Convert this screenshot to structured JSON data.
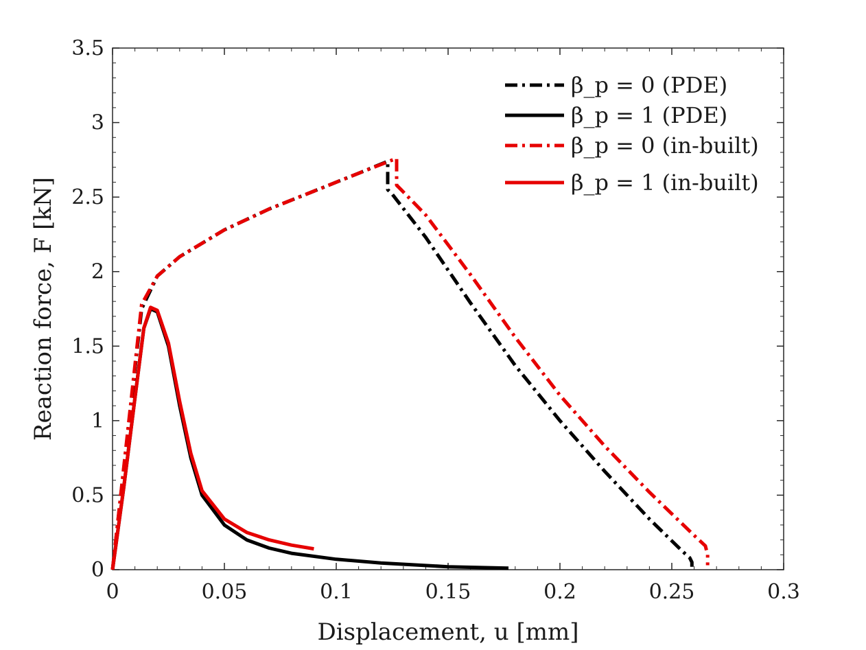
{
  "chart_data": {
    "type": "line",
    "xlabel": "Displacement, u [mm]",
    "ylabel": "Reaction force, F [kN]",
    "xlim": [
      0,
      0.3
    ],
    "ylim": [
      0,
      3.5
    ],
    "xticks": [
      0,
      0.05,
      0.1,
      0.15,
      0.2,
      0.25,
      0.3
    ],
    "yticks": [
      0,
      0.5,
      1,
      1.5,
      2,
      2.5,
      3,
      3.5
    ],
    "xtick_labels": [
      "0",
      "0.05",
      "0.1",
      "0.15",
      "0.2",
      "0.25",
      "0.3"
    ],
    "ytick_labels": [
      "0",
      "0.5",
      "1",
      "1.5",
      "2",
      "2.5",
      "3",
      "3.5"
    ],
    "grid": false,
    "legend_position": "top-right",
    "series": [
      {
        "name": "β_p = 0 (PDE)",
        "color": "#000000",
        "dash": "dashdot",
        "x": [
          0,
          0.013,
          0.02,
          0.03,
          0.05,
          0.07,
          0.09,
          0.11,
          0.123,
          0.123,
          0.125,
          0.14,
          0.16,
          0.18,
          0.2,
          0.22,
          0.24,
          0.255,
          0.258,
          0.259,
          0.259
        ],
        "y": [
          0,
          1.75,
          1.97,
          2.1,
          2.28,
          2.42,
          2.54,
          2.66,
          2.74,
          2.55,
          2.52,
          2.23,
          1.79,
          1.37,
          1.0,
          0.66,
          0.34,
          0.12,
          0.08,
          0.05,
          0.02
        ]
      },
      {
        "name": "β_p = 1 (PDE)",
        "color": "#000000",
        "dash": "solid",
        "x": [
          0,
          0.005,
          0.01,
          0.014,
          0.017,
          0.02,
          0.025,
          0.03,
          0.035,
          0.04,
          0.05,
          0.06,
          0.07,
          0.08,
          0.1,
          0.12,
          0.15,
          0.177
        ],
        "y": [
          0,
          0.55,
          1.15,
          1.62,
          1.75,
          1.73,
          1.5,
          1.1,
          0.75,
          0.5,
          0.3,
          0.2,
          0.145,
          0.11,
          0.07,
          0.045,
          0.02,
          0.01
        ]
      },
      {
        "name": "β_p = 0 (in-built)",
        "color": "#e60000",
        "dash": "dashdot",
        "x": [
          0,
          0.013,
          0.02,
          0.03,
          0.05,
          0.07,
          0.09,
          0.11,
          0.127,
          0.127,
          0.129,
          0.14,
          0.16,
          0.18,
          0.2,
          0.22,
          0.24,
          0.26,
          0.265,
          0.266,
          0.266
        ],
        "y": [
          0,
          1.78,
          1.97,
          2.1,
          2.28,
          2.42,
          2.54,
          2.66,
          2.76,
          2.58,
          2.55,
          2.38,
          1.98,
          1.56,
          1.17,
          0.83,
          0.52,
          0.23,
          0.16,
          0.1,
          0.03
        ]
      },
      {
        "name": "β_p = 1 (in-built)",
        "color": "#e60000",
        "dash": "solid",
        "x": [
          0,
          0.005,
          0.01,
          0.014,
          0.017,
          0.02,
          0.025,
          0.03,
          0.035,
          0.04,
          0.05,
          0.06,
          0.07,
          0.08,
          0.09
        ],
        "y": [
          0,
          0.55,
          1.15,
          1.62,
          1.76,
          1.74,
          1.52,
          1.13,
          0.78,
          0.53,
          0.34,
          0.25,
          0.2,
          0.165,
          0.14
        ]
      }
    ]
  }
}
